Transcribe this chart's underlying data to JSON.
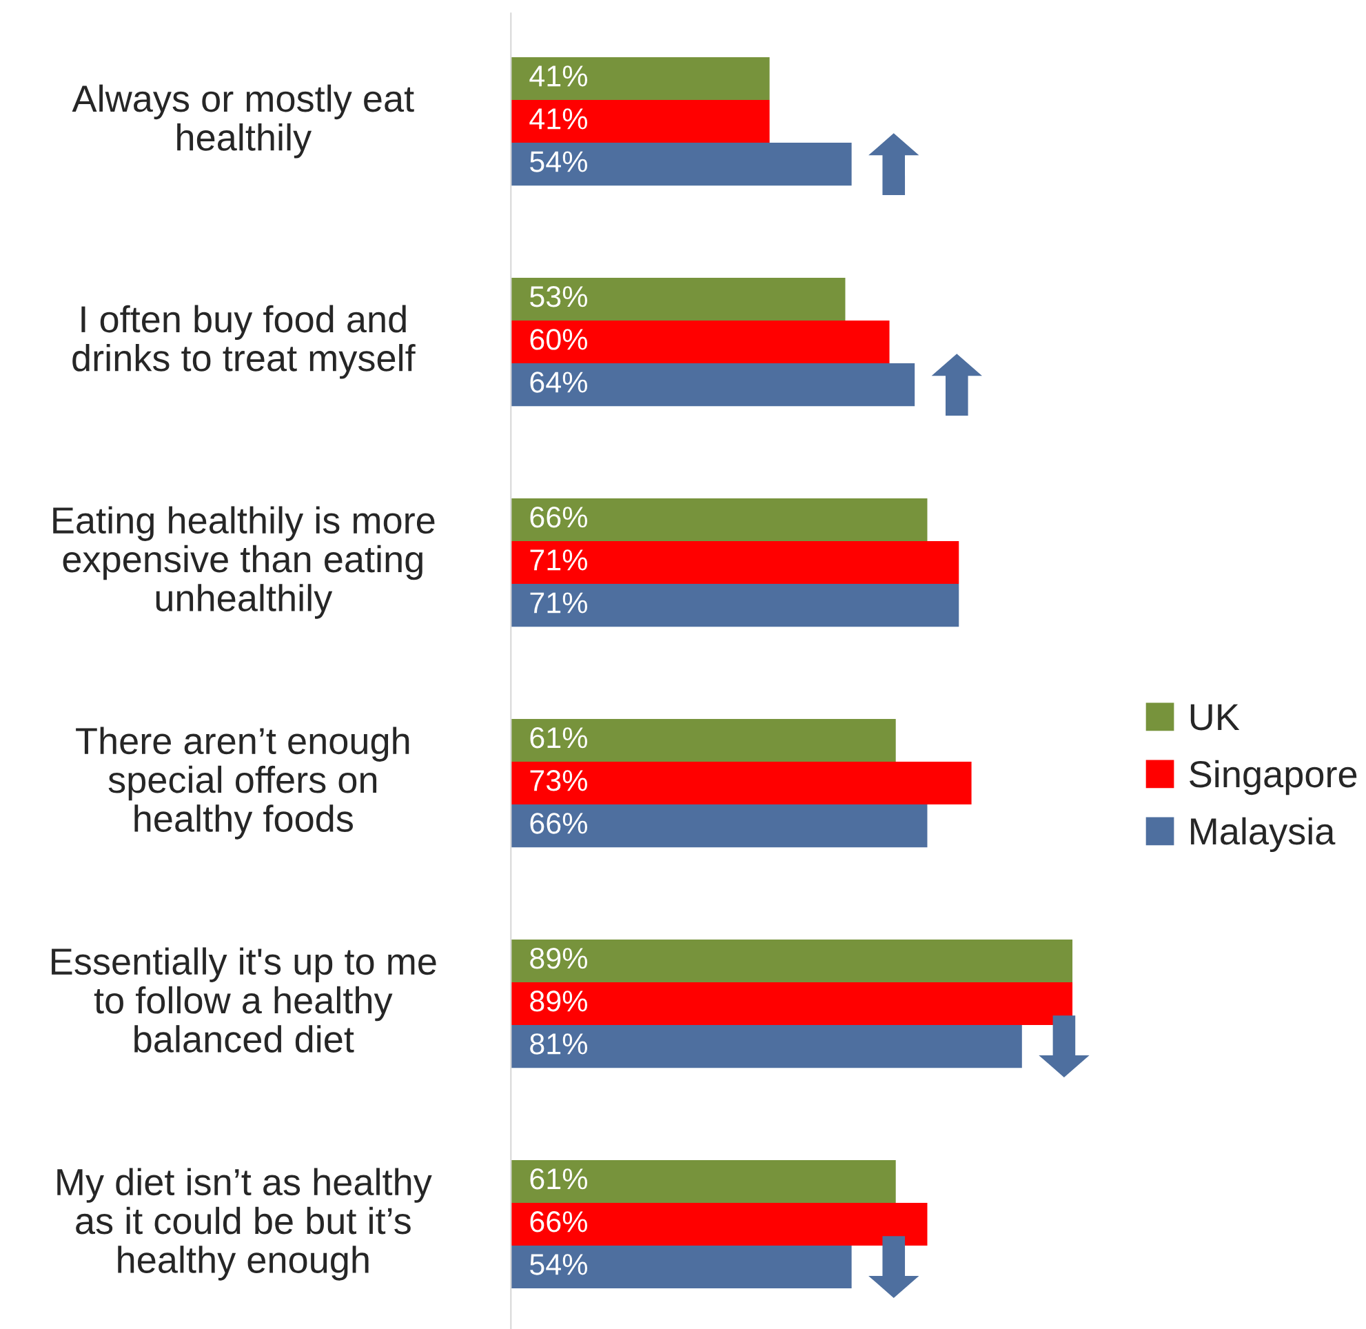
{
  "chart_data": {
    "type": "bar",
    "orientation": "horizontal",
    "legend": "right",
    "categories": [
      "Always or mostly eat\nhealthily",
      "I often buy food and\ndrinks to treat myself",
      "Eating healthily is more\nexpensive than eating\nunhealthily",
      "There aren’t enough\nspecial offers on\nhealthy foods",
      "Essentially it's up to me\nto follow a healthy\nbalanced diet",
      "My diet isn’t as healthy\nas it could be but it’s\nhealthy enough"
    ],
    "series": [
      {
        "name": "UK",
        "color": "#77933c",
        "values": [
          41,
          53,
          66,
          61,
          89,
          61
        ],
        "value_labels": [
          "41%",
          "53%",
          "66%",
          "61%",
          "89%",
          "61%"
        ]
      },
      {
        "name": "Singapore",
        "color": "#ff0000",
        "values": [
          41,
          60,
          71,
          73,
          89,
          66
        ],
        "value_labels": [
          "41%",
          "60%",
          "71%",
          "73%",
          "89%",
          "66%"
        ]
      },
      {
        "name": "Malaysia",
        "color": "#4e6f9f",
        "values": [
          54,
          64,
          71,
          66,
          81,
          54
        ],
        "value_labels": [
          "54%",
          "64%",
          "71%",
          "66%",
          "81%",
          "54%"
        ]
      }
    ]
  }
}
